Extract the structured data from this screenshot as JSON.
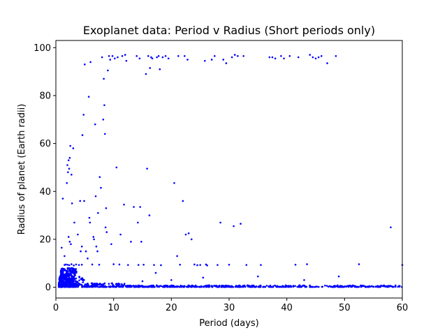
{
  "chart_data": {
    "type": "scatter",
    "title": "Exoplanet data: Period v Radius (Short periods only)",
    "xlabel": "Period (days)",
    "ylabel": "Radius of planet (Earth radii)",
    "xlim": [
      0,
      60
    ],
    "ylim": [
      -4.5,
      103
    ],
    "xticks": [
      0,
      10,
      20,
      30,
      40,
      50,
      60
    ],
    "yticks": [
      0,
      20,
      40,
      60,
      80,
      100
    ],
    "grid": false,
    "marker_color": "#0000ff",
    "series": [
      {
        "points": [
          [
            1.0,
            16.5
          ],
          [
            1.2,
            37
          ],
          [
            1.5,
            13
          ],
          [
            1.7,
            9.5
          ],
          [
            1.9,
            43.5
          ],
          [
            2.0,
            51
          ],
          [
            2.1,
            48
          ],
          [
            2.2,
            53
          ],
          [
            2.3,
            49.5
          ],
          [
            2.4,
            54
          ],
          [
            2.5,
            59
          ],
          [
            2.7,
            47
          ],
          [
            2.8,
            35
          ],
          [
            3.0,
            58
          ],
          [
            3.2,
            27
          ],
          [
            2.2,
            21
          ],
          [
            2.4,
            19
          ],
          [
            2.6,
            18
          ],
          [
            1.5,
            9.3
          ],
          [
            2.0,
            9.4
          ],
          [
            2.3,
            9.2
          ],
          [
            2.7,
            9.6
          ],
          [
            3.1,
            9.1
          ],
          [
            3.5,
            9.5
          ],
          [
            4.0,
            9.3
          ],
          [
            4.5,
            9.4
          ],
          [
            3.8,
            22
          ],
          [
            4.2,
            36
          ],
          [
            4.3,
            15
          ],
          [
            4.5,
            17
          ],
          [
            4.6,
            63.5
          ],
          [
            4.8,
            72
          ],
          [
            4.9,
            36
          ],
          [
            5.0,
            93
          ],
          [
            5.2,
            15
          ],
          [
            5.5,
            12
          ],
          [
            5.7,
            79.5
          ],
          [
            5.8,
            29
          ],
          [
            5.9,
            27
          ],
          [
            6.0,
            94
          ],
          [
            6.3,
            9.5
          ],
          [
            6.5,
            21
          ],
          [
            6.6,
            20
          ],
          [
            6.8,
            68
          ],
          [
            6.9,
            38
          ],
          [
            7.0,
            17
          ],
          [
            7.2,
            15
          ],
          [
            7.3,
            31
          ],
          [
            7.5,
            9.4
          ],
          [
            7.6,
            46
          ],
          [
            7.8,
            41.5
          ],
          [
            8.0,
            96
          ],
          [
            8.2,
            70
          ],
          [
            8.3,
            87
          ],
          [
            8.4,
            76
          ],
          [
            8.5,
            64
          ],
          [
            8.6,
            25
          ],
          [
            8.7,
            33
          ],
          [
            8.8,
            23
          ],
          [
            9.0,
            90.5
          ],
          [
            9.2,
            96.5
          ],
          [
            9.4,
            95
          ],
          [
            9.6,
            18
          ],
          [
            9.8,
            96.5
          ],
          [
            10.0,
            9.6
          ],
          [
            10.2,
            95.5
          ],
          [
            10.5,
            50
          ],
          [
            10.7,
            96
          ],
          [
            11.0,
            9.5
          ],
          [
            11.2,
            22
          ],
          [
            11.5,
            96.5
          ],
          [
            11.8,
            34.5
          ],
          [
            12.0,
            97
          ],
          [
            12.2,
            94.5
          ],
          [
            12.5,
            9.3
          ],
          [
            13.0,
            19
          ],
          [
            13.5,
            33.5
          ],
          [
            14.0,
            96.5
          ],
          [
            14.2,
            27
          ],
          [
            14.3,
            9.3
          ],
          [
            14.5,
            95.5
          ],
          [
            14.6,
            33.5
          ],
          [
            14.8,
            19
          ],
          [
            15.0,
            2.5
          ],
          [
            15.2,
            9.4
          ],
          [
            15.6,
            89
          ],
          [
            15.8,
            49.5
          ],
          [
            16.0,
            96.5
          ],
          [
            16.2,
            30
          ],
          [
            16.3,
            91.5
          ],
          [
            16.5,
            96
          ],
          [
            16.7,
            95.5
          ],
          [
            17.0,
            9.3
          ],
          [
            17.3,
            6
          ],
          [
            17.5,
            96
          ],
          [
            17.8,
            96.5
          ],
          [
            18.0,
            91
          ],
          [
            18.2,
            9.2
          ],
          [
            18.5,
            96
          ],
          [
            19.0,
            96.5
          ],
          [
            19.5,
            95.5
          ],
          [
            20.0,
            3
          ],
          [
            20.5,
            43.5
          ],
          [
            21.0,
            13
          ],
          [
            21.2,
            96.5
          ],
          [
            21.5,
            9.4
          ],
          [
            22.0,
            36
          ],
          [
            22.3,
            96.5
          ],
          [
            22.5,
            22
          ],
          [
            22.8,
            95
          ],
          [
            23.0,
            22.5
          ],
          [
            23.5,
            20
          ],
          [
            24.0,
            9.5
          ],
          [
            24.5,
            9.2
          ],
          [
            25.0,
            9.3
          ],
          [
            25.5,
            4
          ],
          [
            25.8,
            94.5
          ],
          [
            26.0,
            9.5
          ],
          [
            26.2,
            9.1
          ],
          [
            27.0,
            95
          ],
          [
            27.5,
            96.5
          ],
          [
            28.0,
            9.3
          ],
          [
            28.5,
            27
          ],
          [
            29.0,
            95
          ],
          [
            29.5,
            93.5
          ],
          [
            30.0,
            9.4
          ],
          [
            30.5,
            96
          ],
          [
            30.8,
            25.5
          ],
          [
            31.0,
            97
          ],
          [
            31.5,
            96.5
          ],
          [
            32.0,
            26.5
          ],
          [
            32.5,
            96.5
          ],
          [
            33.0,
            9.3
          ],
          [
            35.0,
            4.5
          ],
          [
            35.5,
            9.3
          ],
          [
            37.0,
            96
          ],
          [
            37.5,
            96
          ],
          [
            38.0,
            95.5
          ],
          [
            39.0,
            96.5
          ],
          [
            39.5,
            95.5
          ],
          [
            40.5,
            96.5
          ],
          [
            41.5,
            9.4
          ],
          [
            42.0,
            96
          ],
          [
            43.0,
            3
          ],
          [
            43.5,
            9.6
          ],
          [
            44.0,
            97
          ],
          [
            44.5,
            96
          ],
          [
            45.0,
            95.5
          ],
          [
            45.5,
            96
          ],
          [
            46.0,
            96.5
          ],
          [
            47.0,
            93.5
          ],
          [
            48.5,
            96.5
          ],
          [
            49.0,
            4.5
          ],
          [
            52.5,
            9.6
          ],
          [
            58.0,
            25
          ],
          [
            60.0,
            9.3
          ]
        ]
      }
    ],
    "dense_band": {
      "note": "",
      "points_from_script": true
    }
  }
}
